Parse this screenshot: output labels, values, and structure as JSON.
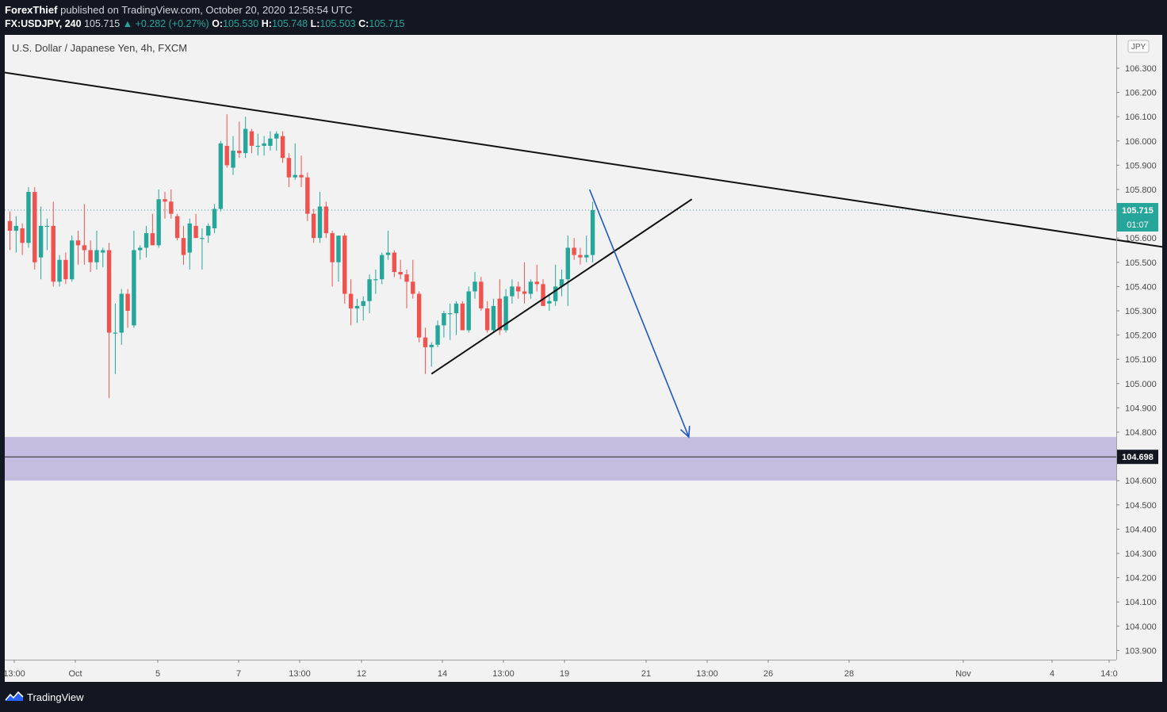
{
  "header": {
    "author": "ForexThief",
    "published": "published on TradingView.com, October 20, 2020 12:58:54 UTC",
    "symbol_line": "FX:USDJPY, 240",
    "last": "105.715",
    "change": "▲ +0.282 (+0.27%)",
    "o_label": "O:",
    "o_value": "105.530",
    "h_label": "H:",
    "h_value": "105.748",
    "l_label": "L:",
    "l_value": "105.503",
    "c_label": "C:",
    "c_value": "105.715"
  },
  "chart_title": "U.S. Dollar / Japanese Yen, 4h, FXCM",
  "footer": {
    "brand": "TradingView",
    "brand_icon": "tradingview-logo-icon"
  },
  "colors": {
    "up": "#26a69a",
    "down": "#ef5350",
    "zone": "#c4bde0",
    "arrow": "#1e56c8",
    "price_badge": "#26a69a"
  },
  "chart_data": {
    "type": "candlestick",
    "symbol": "FX:USDJPY",
    "timeframe": "240",
    "currency_badge": "JPY",
    "y_range": [
      103.85,
      106.45
    ],
    "y_ticks": [
      "106.300",
      "106.200",
      "106.100",
      "106.000",
      "105.900",
      "105.800",
      "105.600",
      "105.500",
      "105.400",
      "105.300",
      "105.200",
      "105.100",
      "105.000",
      "104.900",
      "104.800",
      "104.600",
      "104.500",
      "104.400",
      "104.300",
      "104.200",
      "104.100",
      "104.000",
      "103.900"
    ],
    "x_ticks": [
      "13:00",
      "Oct",
      "5",
      "7",
      "13:00",
      "12",
      "14",
      "13:00",
      "19",
      "21",
      "13:00",
      "26",
      "28",
      "Nov",
      "4",
      "14:0"
    ],
    "last_price_label": "105.715",
    "countdown_label": "01:07",
    "zone_price_label": "104.698",
    "zone": {
      "top": 104.78,
      "bottom": 104.6,
      "line": 104.698
    },
    "candles": [
      {
        "o": 105.67,
        "h": 105.71,
        "l": 105.55,
        "c": 105.63
      },
      {
        "o": 105.63,
        "h": 105.69,
        "l": 105.54,
        "c": 105.65
      },
      {
        "o": 105.64,
        "h": 105.66,
        "l": 105.53,
        "c": 105.58
      },
      {
        "o": 105.58,
        "h": 105.81,
        "l": 105.56,
        "c": 105.79
      },
      {
        "o": 105.79,
        "h": 105.81,
        "l": 105.47,
        "c": 105.5
      },
      {
        "o": 105.52,
        "h": 105.73,
        "l": 105.43,
        "c": 105.65
      },
      {
        "o": 105.65,
        "h": 105.68,
        "l": 105.55,
        "c": 105.65
      },
      {
        "o": 105.65,
        "h": 105.75,
        "l": 105.4,
        "c": 105.42
      },
      {
        "o": 105.42,
        "h": 105.53,
        "l": 105.4,
        "c": 105.51
      },
      {
        "o": 105.51,
        "h": 105.54,
        "l": 105.41,
        "c": 105.43
      },
      {
        "o": 105.43,
        "h": 105.61,
        "l": 105.42,
        "c": 105.59
      },
      {
        "o": 105.59,
        "h": 105.63,
        "l": 105.49,
        "c": 105.57
      },
      {
        "o": 105.57,
        "h": 105.74,
        "l": 105.49,
        "c": 105.55
      },
      {
        "o": 105.55,
        "h": 105.59,
        "l": 105.46,
        "c": 105.5
      },
      {
        "o": 105.5,
        "h": 105.63,
        "l": 105.47,
        "c": 105.55
      },
      {
        "o": 105.54,
        "h": 105.56,
        "l": 105.48,
        "c": 105.55
      },
      {
        "o": 105.55,
        "h": 105.58,
        "l": 104.94,
        "c": 105.21
      },
      {
        "o": 105.21,
        "h": 105.33,
        "l": 105.04,
        "c": 105.21
      },
      {
        "o": 105.21,
        "h": 105.39,
        "l": 105.16,
        "c": 105.37
      },
      {
        "o": 105.37,
        "h": 105.39,
        "l": 105.23,
        "c": 105.3
      },
      {
        "o": 105.24,
        "h": 105.63,
        "l": 105.23,
        "c": 105.55
      },
      {
        "o": 105.55,
        "h": 105.57,
        "l": 105.51,
        "c": 105.56
      },
      {
        "o": 105.56,
        "h": 105.65,
        "l": 105.52,
        "c": 105.62
      },
      {
        "o": 105.62,
        "h": 105.7,
        "l": 105.58,
        "c": 105.57
      },
      {
        "o": 105.57,
        "h": 105.8,
        "l": 105.56,
        "c": 105.76
      },
      {
        "o": 105.76,
        "h": 105.79,
        "l": 105.68,
        "c": 105.75
      },
      {
        "o": 105.75,
        "h": 105.8,
        "l": 105.68,
        "c": 105.7
      },
      {
        "o": 105.69,
        "h": 105.7,
        "l": 105.59,
        "c": 105.6
      },
      {
        "o": 105.6,
        "h": 105.65,
        "l": 105.49,
        "c": 105.53
      },
      {
        "o": 105.54,
        "h": 105.68,
        "l": 105.47,
        "c": 105.66
      },
      {
        "o": 105.65,
        "h": 105.7,
        "l": 105.6,
        "c": 105.6
      },
      {
        "o": 105.6,
        "h": 105.64,
        "l": 105.47,
        "c": 105.6
      },
      {
        "o": 105.61,
        "h": 105.66,
        "l": 105.58,
        "c": 105.65
      },
      {
        "o": 105.64,
        "h": 105.74,
        "l": 105.62,
        "c": 105.72
      },
      {
        "o": 105.72,
        "h": 106.0,
        "l": 105.71,
        "c": 105.99
      },
      {
        "o": 105.98,
        "h": 106.11,
        "l": 105.89,
        "c": 105.9
      },
      {
        "o": 105.89,
        "h": 106.02,
        "l": 105.86,
        "c": 105.96
      },
      {
        "o": 105.96,
        "h": 106.08,
        "l": 105.93,
        "c": 105.95
      },
      {
        "o": 105.95,
        "h": 106.1,
        "l": 105.93,
        "c": 106.05
      },
      {
        "o": 106.04,
        "h": 106.05,
        "l": 105.95,
        "c": 105.98
      },
      {
        "o": 105.98,
        "h": 106.03,
        "l": 105.94,
        "c": 105.98
      },
      {
        "o": 105.98,
        "h": 106.02,
        "l": 105.94,
        "c": 105.99
      },
      {
        "o": 105.98,
        "h": 106.04,
        "l": 105.96,
        "c": 106.01
      },
      {
        "o": 106.01,
        "h": 106.04,
        "l": 105.96,
        "c": 106.03
      },
      {
        "o": 106.02,
        "h": 106.04,
        "l": 105.91,
        "c": 105.93
      },
      {
        "o": 105.93,
        "h": 105.95,
        "l": 105.81,
        "c": 105.85
      },
      {
        "o": 105.85,
        "h": 105.99,
        "l": 105.84,
        "c": 105.86
      },
      {
        "o": 105.86,
        "h": 105.94,
        "l": 105.81,
        "c": 105.85
      },
      {
        "o": 105.85,
        "h": 105.87,
        "l": 105.67,
        "c": 105.7
      },
      {
        "o": 105.7,
        "h": 105.72,
        "l": 105.58,
        "c": 105.6
      },
      {
        "o": 105.6,
        "h": 105.79,
        "l": 105.58,
        "c": 105.73
      },
      {
        "o": 105.73,
        "h": 105.75,
        "l": 105.6,
        "c": 105.62
      },
      {
        "o": 105.62,
        "h": 105.63,
        "l": 105.4,
        "c": 105.5
      },
      {
        "o": 105.5,
        "h": 105.6,
        "l": 105.42,
        "c": 105.61
      },
      {
        "o": 105.61,
        "h": 105.62,
        "l": 105.33,
        "c": 105.37
      },
      {
        "o": 105.37,
        "h": 105.43,
        "l": 105.24,
        "c": 105.31
      },
      {
        "o": 105.31,
        "h": 105.35,
        "l": 105.25,
        "c": 105.32
      },
      {
        "o": 105.32,
        "h": 105.36,
        "l": 105.26,
        "c": 105.34
      },
      {
        "o": 105.34,
        "h": 105.45,
        "l": 105.29,
        "c": 105.43
      },
      {
        "o": 105.43,
        "h": 105.47,
        "l": 105.37,
        "c": 105.43
      },
      {
        "o": 105.43,
        "h": 105.54,
        "l": 105.41,
        "c": 105.53
      },
      {
        "o": 105.53,
        "h": 105.63,
        "l": 105.51,
        "c": 105.54
      },
      {
        "o": 105.54,
        "h": 105.55,
        "l": 105.44,
        "c": 105.46
      },
      {
        "o": 105.46,
        "h": 105.51,
        "l": 105.43,
        "c": 105.45
      },
      {
        "o": 105.45,
        "h": 105.47,
        "l": 105.31,
        "c": 105.42
      },
      {
        "o": 105.42,
        "h": 105.51,
        "l": 105.35,
        "c": 105.37
      },
      {
        "o": 105.37,
        "h": 105.38,
        "l": 105.17,
        "c": 105.19
      },
      {
        "o": 105.19,
        "h": 105.23,
        "l": 105.04,
        "c": 105.15
      },
      {
        "o": 105.15,
        "h": 105.17,
        "l": 105.07,
        "c": 105.16
      },
      {
        "o": 105.16,
        "h": 105.26,
        "l": 105.15,
        "c": 105.24
      },
      {
        "o": 105.24,
        "h": 105.3,
        "l": 105.19,
        "c": 105.29
      },
      {
        "o": 105.29,
        "h": 105.33,
        "l": 105.18,
        "c": 105.29
      },
      {
        "o": 105.29,
        "h": 105.34,
        "l": 105.2,
        "c": 105.33
      },
      {
        "o": 105.33,
        "h": 105.34,
        "l": 105.22,
        "c": 105.22
      },
      {
        "o": 105.22,
        "h": 105.4,
        "l": 105.21,
        "c": 105.38
      },
      {
        "o": 105.38,
        "h": 105.46,
        "l": 105.35,
        "c": 105.42
      },
      {
        "o": 105.42,
        "h": 105.44,
        "l": 105.3,
        "c": 105.31
      },
      {
        "o": 105.31,
        "h": 105.34,
        "l": 105.21,
        "c": 105.22
      },
      {
        "o": 105.22,
        "h": 105.35,
        "l": 105.21,
        "c": 105.32
      },
      {
        "o": 105.35,
        "h": 105.43,
        "l": 105.2,
        "c": 105.22
      },
      {
        "o": 105.22,
        "h": 105.39,
        "l": 105.21,
        "c": 105.36
      },
      {
        "o": 105.36,
        "h": 105.43,
        "l": 105.33,
        "c": 105.4
      },
      {
        "o": 105.4,
        "h": 105.42,
        "l": 105.35,
        "c": 105.38
      },
      {
        "o": 105.38,
        "h": 105.5,
        "l": 105.33,
        "c": 105.37
      },
      {
        "o": 105.37,
        "h": 105.43,
        "l": 105.35,
        "c": 105.42
      },
      {
        "o": 105.42,
        "h": 105.49,
        "l": 105.38,
        "c": 105.41
      },
      {
        "o": 105.41,
        "h": 105.43,
        "l": 105.32,
        "c": 105.32
      },
      {
        "o": 105.33,
        "h": 105.37,
        "l": 105.3,
        "c": 105.34
      },
      {
        "o": 105.34,
        "h": 105.49,
        "l": 105.32,
        "c": 105.4
      },
      {
        "o": 105.4,
        "h": 105.47,
        "l": 105.36,
        "c": 105.43
      },
      {
        "o": 105.43,
        "h": 105.61,
        "l": 105.32,
        "c": 105.56
      },
      {
        "o": 105.56,
        "h": 105.6,
        "l": 105.51,
        "c": 105.53
      },
      {
        "o": 105.53,
        "h": 105.56,
        "l": 105.49,
        "c": 105.52
      },
      {
        "o": 105.52,
        "h": 105.61,
        "l": 105.5,
        "c": 105.53
      },
      {
        "o": 105.53,
        "h": 105.75,
        "l": 105.5,
        "c": 105.715
      }
    ],
    "trendlines": [
      {
        "name": "descending-resistance",
        "from": [
          -5.5,
          106.3
        ],
        "to": [
          205,
          105.49
        ]
      },
      {
        "name": "ascending-support",
        "from": [
          68,
          105.04
        ],
        "to": [
          110,
          105.76
        ]
      }
    ],
    "forecast_arrow": {
      "from": [
        93.5,
        105.8
      ],
      "to": [
        109.5,
        104.78
      ]
    }
  }
}
